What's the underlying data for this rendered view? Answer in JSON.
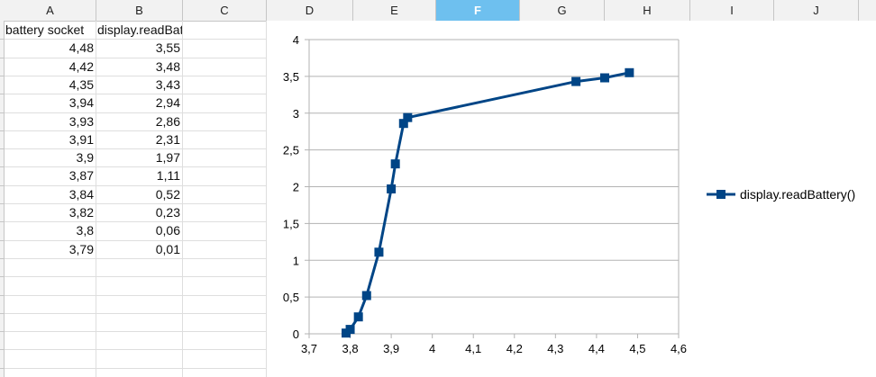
{
  "columns": [
    {
      "letter": "A"
    },
    {
      "letter": "B"
    },
    {
      "letter": "C"
    },
    {
      "letter": "D"
    },
    {
      "letter": "E"
    },
    {
      "letter": "F"
    },
    {
      "letter": "G"
    },
    {
      "letter": "H"
    },
    {
      "letter": "I"
    },
    {
      "letter": "J"
    }
  ],
  "selected_column": "F",
  "sheet": {
    "headers": [
      "battery socket",
      "display.readBattery()"
    ],
    "rows": [
      [
        "4,48",
        "3,55"
      ],
      [
        "4,42",
        "3,48"
      ],
      [
        "4,35",
        "3,43"
      ],
      [
        "3,94",
        "2,94"
      ],
      [
        "3,93",
        "2,86"
      ],
      [
        "3,91",
        "2,31"
      ],
      [
        "3,9",
        "1,97"
      ],
      [
        "3,87",
        "1,11"
      ],
      [
        "3,84",
        "0,52"
      ],
      [
        "3,82",
        "0,23"
      ],
      [
        "3,8",
        "0,06"
      ],
      [
        "3,79",
        "0,01"
      ]
    ]
  },
  "chart_data": {
    "type": "scatter",
    "xlim": [
      3.7,
      4.6
    ],
    "ylim": [
      0,
      4
    ],
    "x_ticks": [
      "3,7",
      "3,8",
      "3,9",
      "4",
      "4,1",
      "4,2",
      "4,3",
      "4,4",
      "4,5",
      "4,6"
    ],
    "y_ticks": [
      "0",
      "0,5",
      "1",
      "1,5",
      "2",
      "2,5",
      "3",
      "3,5",
      "4"
    ],
    "x_tick_values": [
      3.7,
      3.8,
      3.9,
      4.0,
      4.1,
      4.2,
      4.3,
      4.4,
      4.5,
      4.6
    ],
    "y_tick_values": [
      0,
      0.5,
      1,
      1.5,
      2,
      2.5,
      3,
      3.5,
      4
    ],
    "grid": "horizontal",
    "legend_position": "right",
    "series": [
      {
        "name": "display.readBattery()",
        "color": "#004586",
        "marker": "square",
        "x": [
          4.48,
          4.42,
          4.35,
          3.94,
          3.93,
          3.91,
          3.9,
          3.87,
          3.84,
          3.82,
          3.8,
          3.79
        ],
        "y": [
          3.55,
          3.48,
          3.43,
          2.94,
          2.86,
          2.31,
          1.97,
          1.11,
          0.52,
          0.23,
          0.06,
          0.01
        ]
      }
    ]
  }
}
